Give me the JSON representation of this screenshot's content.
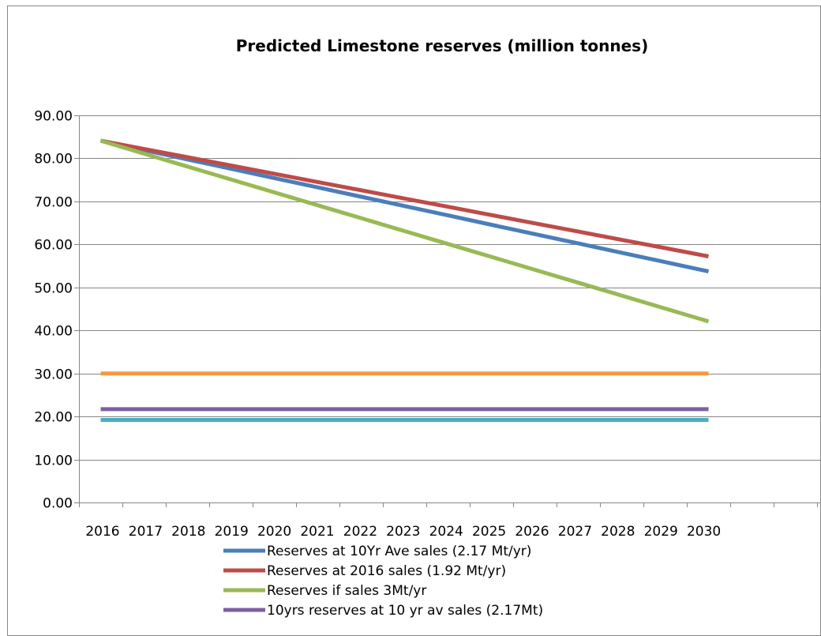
{
  "chart_data": {
    "type": "line",
    "title": "Predicted Limestone reserves (million tonnes)",
    "xlabel": "",
    "ylabel": "",
    "ylim": [
      0,
      90
    ],
    "yticks": [
      "0.00",
      "10.00",
      "20.00",
      "30.00",
      "40.00",
      "50.00",
      "60.00",
      "70.00",
      "80.00",
      "90.00"
    ],
    "categories": [
      "2016",
      "2017",
      "2018",
      "2019",
      "2020",
      "2021",
      "2022",
      "2023",
      "2024",
      "2025",
      "2026",
      "2027",
      "2028",
      "2029",
      "2030"
    ],
    "grid": true,
    "legend_position": "bottom",
    "series": [
      {
        "name": "Reserves at 10Yr Ave sales (2.17 Mt/yr)",
        "color": "#4a7ebb",
        "values": [
          84.1,
          81.93,
          79.76,
          77.59,
          75.42,
          73.25,
          71.08,
          68.91,
          66.74,
          64.57,
          62.4,
          60.23,
          58.06,
          55.89,
          53.72
        ]
      },
      {
        "name": "Reserves at 2016 sales (1.92 Mt/yr)",
        "color": "#be4b48",
        "values": [
          84.1,
          82.18,
          80.26,
          78.34,
          76.42,
          74.5,
          72.58,
          70.66,
          68.74,
          66.82,
          64.9,
          62.98,
          61.06,
          59.14,
          57.22
        ]
      },
      {
        "name": "Reserves if sales 3Mt/yr",
        "color": "#98b954",
        "values": [
          84.1,
          81.1,
          78.1,
          75.1,
          72.1,
          69.1,
          66.1,
          63.1,
          60.1,
          57.1,
          54.1,
          51.1,
          48.1,
          45.1,
          42.1
        ]
      },
      {
        "name": "10yrs reserves at 10 yr av sales (2.17Mt)",
        "color": "#7d60a0",
        "values": [
          21.7,
          21.7,
          21.7,
          21.7,
          21.7,
          21.7,
          21.7,
          21.7,
          21.7,
          21.7,
          21.7,
          21.7,
          21.7,
          21.7,
          21.7
        ]
      },
      {
        "name": "",
        "color": "#f79646",
        "values": [
          30,
          30,
          30,
          30,
          30,
          30,
          30,
          30,
          30,
          30,
          30,
          30,
          30,
          30,
          30
        ]
      },
      {
        "name": "",
        "color": "#4bacc6",
        "values": [
          19.2,
          19.2,
          19.2,
          19.2,
          19.2,
          19.2,
          19.2,
          19.2,
          19.2,
          19.2,
          19.2,
          19.2,
          19.2,
          19.2,
          19.2
        ]
      }
    ]
  }
}
